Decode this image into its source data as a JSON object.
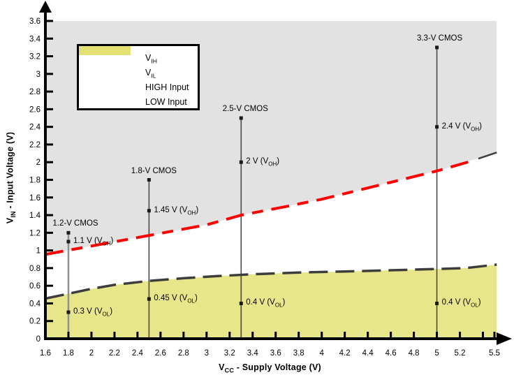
{
  "chart_data": {
    "type": "line",
    "x_axis": {
      "title_pre": "V",
      "title_sub": "CC",
      "title_post": " - Supply Voltage (V)",
      "min": 1.6,
      "max": 5.5,
      "ticks": [
        {
          "v": 1.6,
          "label": "1.6"
        },
        {
          "v": 1.8,
          "label": "1.8"
        },
        {
          "v": 2,
          "label": "2"
        },
        {
          "v": 2.2,
          "label": "2.2"
        },
        {
          "v": 2.4,
          "label": "2.4"
        },
        {
          "v": 2.6,
          "label": "2.6"
        },
        {
          "v": 2.8,
          "label": "2.8"
        },
        {
          "v": 3,
          "label": "3"
        },
        {
          "v": 3.2,
          "label": "3.2"
        },
        {
          "v": 3.4,
          "label": "3.4"
        },
        {
          "v": 3.6,
          "label": "3.6"
        },
        {
          "v": 3.8,
          "label": "3.8"
        },
        {
          "v": 4,
          "label": "4"
        },
        {
          "v": 4.2,
          "label": "4.2"
        },
        {
          "v": 4.4,
          "label": "4.4"
        },
        {
          "v": 4.6,
          "label": "4.6"
        },
        {
          "v": 4.8,
          "label": "4.8"
        },
        {
          "v": 5,
          "label": "5"
        },
        {
          "v": 5.2,
          "label": "5.2"
        },
        {
          "v": 5.4,
          "label": ""
        },
        {
          "v": 5.5,
          "label": "5.5"
        }
      ]
    },
    "y_axis": {
      "title_pre": "V",
      "title_sub": "IN",
      "title_post": " - Input Voltage (V)",
      "min": 0,
      "max": 3.6,
      "ticks": [
        {
          "v": 0,
          "label": "0"
        },
        {
          "v": 0.2,
          "label": "0.2"
        },
        {
          "v": 0.4,
          "label": "0.4"
        },
        {
          "v": 0.6,
          "label": "0.6"
        },
        {
          "v": 0.8,
          "label": "0.8"
        },
        {
          "v": 1,
          "label": "1"
        },
        {
          "v": 1.2,
          "label": "1.2"
        },
        {
          "v": 1.4,
          "label": "1.4"
        },
        {
          "v": 1.6,
          "label": "1.6"
        },
        {
          "v": 1.8,
          "label": "1.8"
        },
        {
          "v": 2,
          "label": "2"
        },
        {
          "v": 2.2,
          "label": "2.2"
        },
        {
          "v": 2.4,
          "label": "2.4"
        },
        {
          "v": 2.6,
          "label": "2.6"
        },
        {
          "v": 2.8,
          "label": "2.8"
        },
        {
          "v": 3,
          "label": "3"
        },
        {
          "v": 3.2,
          "label": "3.2"
        },
        {
          "v": 3.4,
          "label": "3.4"
        },
        {
          "v": 3.6,
          "label": "3.6"
        }
      ]
    },
    "series": [
      {
        "name": "VIH",
        "color": "#ff0000",
        "width": 4,
        "dash": "26 12 16 12",
        "points": [
          [
            1.6,
            0.955
          ],
          [
            2.0,
            1.05
          ],
          [
            2.5,
            1.17
          ],
          [
            3.0,
            1.29
          ],
          [
            3.3,
            1.4
          ],
          [
            3.7,
            1.5
          ],
          [
            4.0,
            1.58
          ],
          [
            4.5,
            1.74
          ],
          [
            5.0,
            1.9
          ],
          [
            5.32,
            2.02
          ]
        ]
      },
      {
        "name": "VIL",
        "color": "#3d3d3d",
        "width": 3.5,
        "dash": "27 11",
        "points": [
          [
            1.6,
            0.455
          ],
          [
            1.8,
            0.51
          ],
          [
            2.0,
            0.565
          ],
          [
            2.2,
            0.61
          ],
          [
            2.5,
            0.655
          ],
          [
            2.8,
            0.685
          ],
          [
            3.1,
            0.71
          ],
          [
            3.4,
            0.73
          ],
          [
            3.8,
            0.75
          ],
          [
            4.2,
            0.762
          ],
          [
            4.6,
            0.775
          ],
          [
            5.0,
            0.79
          ],
          [
            5.25,
            0.8
          ],
          [
            5.52,
            0.84
          ]
        ]
      }
    ],
    "vih_tail": {
      "color": "#3d3d3d",
      "width": 2.5,
      "points": [
        [
          5.36,
          2.04
        ],
        [
          5.52,
          2.11
        ]
      ]
    },
    "regions": [
      {
        "name": "HIGH Input",
        "color": "#e2e2e2",
        "to": 3.6,
        "boundary": [
          [
            1.6,
            0.955
          ],
          [
            2.0,
            1.05
          ],
          [
            2.5,
            1.17
          ],
          [
            3.0,
            1.29
          ],
          [
            3.3,
            1.4
          ],
          [
            3.7,
            1.5
          ],
          [
            4.0,
            1.58
          ],
          [
            4.5,
            1.74
          ],
          [
            5.0,
            1.9
          ],
          [
            5.52,
            2.11
          ]
        ]
      },
      {
        "name": "LOW Input",
        "color": "#e8e68b",
        "to": 0,
        "boundary": [
          [
            1.6,
            0.455
          ],
          [
            1.8,
            0.51
          ],
          [
            2.0,
            0.565
          ],
          [
            2.2,
            0.61
          ],
          [
            2.5,
            0.655
          ],
          [
            2.8,
            0.685
          ],
          [
            3.1,
            0.71
          ],
          [
            3.4,
            0.73
          ],
          [
            3.8,
            0.75
          ],
          [
            4.2,
            0.762
          ],
          [
            4.6,
            0.775
          ],
          [
            5.0,
            0.79
          ],
          [
            5.25,
            0.8
          ],
          [
            5.52,
            0.84
          ]
        ]
      }
    ],
    "cmos_lines": [
      {
        "x": 1.8,
        "top": 1.2,
        "title": "1.2-V CMOS",
        "color": "#8f8f8f",
        "width": 2.5,
        "title_dx": 10,
        "points": [
          {
            "y": 1.1,
            "pre": "1.1 V (V",
            "sub": "OH",
            "post": ")"
          },
          {
            "y": 0.3,
            "pre": "0.3 V (V",
            "sub": "OL",
            "post": ")"
          }
        ]
      },
      {
        "x": 2.5,
        "top": 1.8,
        "title": "1.8-V CMOS",
        "color": "#4a4a4a",
        "width": 1.6,
        "title_dx": 7,
        "points": [
          {
            "y": 1.45,
            "pre": "1.45 V (V",
            "sub": "OH",
            "post": ")"
          },
          {
            "y": 0.45,
            "pre": "0.45 V (V",
            "sub": "OL",
            "post": ")"
          }
        ]
      },
      {
        "x": 3.3,
        "top": 2.5,
        "title": "2.5-V CMOS",
        "color": "#4a4a4a",
        "width": 1.6,
        "title_dx": 6,
        "points": [
          {
            "y": 2.0,
            "pre": "2 V (V",
            "sub": "OH",
            "post": ")"
          },
          {
            "y": 0.4,
            "pre": "0.4 V (V",
            "sub": "OL",
            "post": ")"
          }
        ]
      },
      {
        "x": 5.0,
        "top": 3.3,
        "title": "3.3-V CMOS",
        "color": "#4a4a4a",
        "width": 1.6,
        "title_dx": 4,
        "points": [
          {
            "y": 2.4,
            "pre": "2.4 V (V",
            "sub": "OH",
            "post": ")"
          },
          {
            "y": 0.4,
            "pre": "0.4 V (V",
            "sub": "OL",
            "post": ")"
          }
        ]
      }
    ],
    "legend": {
      "items": [
        {
          "kind": "line",
          "color": "#ff0000",
          "label_pre": "V",
          "label_sub": "IH"
        },
        {
          "kind": "line",
          "color": "#3d3d3d",
          "label_pre": "V",
          "label_sub": "IL"
        },
        {
          "kind": "fill",
          "color": "#a6a6a6",
          "label_pre": "HIGH Input",
          "label_sub": ""
        },
        {
          "kind": "fill",
          "color": "#e3e074",
          "label_pre": "LOW Input",
          "label_sub": ""
        }
      ]
    },
    "marker_color": "#1a1a1a",
    "axis_color": "#000000"
  }
}
